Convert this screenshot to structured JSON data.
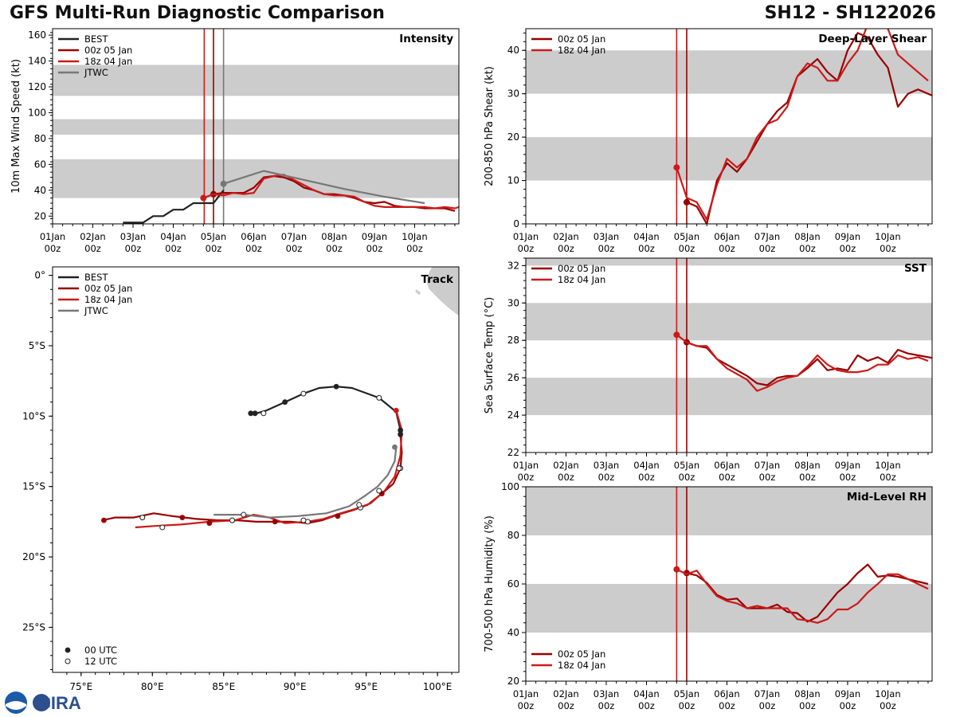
{
  "header": {
    "title": "GFS Multi-Run Diagnostic Comparison",
    "storm_id": "SH12 - SH122026"
  },
  "colors": {
    "best": "#222222",
    "run00z05": "#990000",
    "run18z04": "#cc1a1a",
    "jtwc": "#777777",
    "band": "#cccccc",
    "land": "#cccccc"
  },
  "logo": {
    "name": "NOAA CIRA logo",
    "text": "CIRA"
  },
  "time_axis": {
    "ticks": [
      "01Jan\n00z",
      "02Jan\n00z",
      "03Jan\n00z",
      "04Jan\n00z",
      "05Jan\n00z",
      "06Jan\n00z",
      "07Jan\n00z",
      "08Jan\n00z",
      "09Jan\n00z",
      "10Jan\n00z"
    ],
    "range_days": [
      0,
      10.1
    ]
  },
  "chart_data": [
    {
      "id": "intensity",
      "type": "line",
      "title": "Intensity",
      "ylabel": "10m Max Wind Speed (kt)",
      "ylim": [
        14,
        165
      ],
      "yticks": [
        20,
        40,
        60,
        80,
        100,
        120,
        140,
        160
      ],
      "bands": [
        [
          34,
          64
        ],
        [
          83,
          95
        ],
        [
          113,
          137
        ]
      ],
      "vlines": [
        {
          "t": 3.77,
          "series": "run18z04"
        },
        {
          "t": 4.0,
          "series": "run00z05"
        },
        {
          "t": 4.25,
          "series": "jtwc"
        }
      ],
      "legend": [
        "BEST",
        "00z 05 Jan",
        "18z 04 Jan",
        "JTWC"
      ],
      "series": [
        {
          "name": "BEST",
          "key": "best",
          "t": [
            1.75,
            2.0,
            2.25,
            2.5,
            2.75,
            3.0,
            3.25,
            3.5,
            3.75,
            4.0,
            4.25
          ],
          "v": [
            15,
            15,
            15,
            20,
            20,
            25,
            25,
            30,
            30,
            30,
            40
          ]
        },
        {
          "name": "00z 05 Jan",
          "key": "run00z05",
          "t": [
            4.0,
            4.25,
            4.5,
            4.75,
            5.0,
            5.25,
            5.5,
            5.75,
            6.0,
            6.25,
            6.5,
            6.75,
            7.0,
            7.25,
            7.5,
            7.75,
            8.0,
            8.25,
            8.5,
            8.75,
            9.0,
            9.25,
            9.5,
            9.75,
            10.0
          ],
          "v": [
            37,
            38,
            38,
            38,
            42,
            50,
            51,
            50,
            47,
            42,
            40,
            37,
            37,
            36,
            34,
            31,
            30,
            31,
            28,
            27,
            27,
            26,
            26,
            26,
            24
          ],
          "marker": 0
        },
        {
          "name": "18z 04 Jan",
          "key": "run18z04",
          "t": [
            3.75,
            4.0,
            4.25,
            4.5,
            4.75,
            5.0,
            5.25,
            5.5,
            5.75,
            6.0,
            6.25,
            6.5,
            6.75,
            7.0,
            7.25,
            7.5,
            7.75,
            8.0,
            8.25,
            8.5,
            8.75,
            9.0,
            9.25,
            9.5,
            9.75,
            10.0,
            10.1
          ],
          "v": [
            34,
            37,
            36,
            38,
            37,
            38,
            49,
            51,
            52,
            48,
            44,
            40,
            37,
            36,
            36,
            35,
            31,
            28,
            27,
            27,
            27,
            27,
            27,
            26,
            27,
            26,
            27
          ],
          "marker": 0
        },
        {
          "name": "JTWC",
          "key": "jtwc",
          "t": [
            4.25,
            4.75,
            5.25,
            6.25,
            7.25,
            8.25,
            9.25
          ],
          "v": [
            45,
            50,
            55,
            48,
            41,
            35,
            30
          ],
          "marker": 0
        }
      ]
    },
    {
      "id": "shear",
      "type": "line",
      "title": "Deep-Layer Shear",
      "ylabel": "200-850 hPa Shear (kt)",
      "ylim": [
        0,
        45
      ],
      "yticks": [
        0,
        10,
        20,
        30,
        40
      ],
      "bands": [
        [
          10,
          20
        ],
        [
          30,
          40
        ]
      ],
      "vlines": [
        {
          "t": 3.75,
          "series": "run18z04"
        },
        {
          "t": 4.0,
          "series": "run00z05"
        }
      ],
      "legend": [
        "00z 05 Jan",
        "18z 04 Jan"
      ],
      "series": [
        {
          "name": "00z 05 Jan",
          "key": "run00z05",
          "t": [
            4.0,
            4.25,
            4.5,
            4.75,
            5.0,
            5.25,
            5.5,
            5.75,
            6.0,
            6.25,
            6.5,
            6.75,
            7.0,
            7.25,
            7.5,
            7.75,
            8.0,
            8.25,
            8.5,
            8.75,
            9.0,
            9.25,
            9.5,
            9.75,
            10.0,
            10.25
          ],
          "v": [
            5,
            4,
            0,
            10,
            14,
            12,
            15,
            19,
            23,
            26,
            28,
            34,
            36,
            38,
            35,
            33,
            40,
            44,
            43,
            39,
            36,
            27,
            30,
            31,
            30,
            29
          ],
          "marker": 0
        },
        {
          "name": "18z 04 Jan",
          "key": "run18z04",
          "t": [
            3.75,
            4.0,
            4.25,
            4.5,
            4.75,
            5.0,
            5.25,
            5.5,
            5.75,
            6.0,
            6.25,
            6.5,
            6.75,
            7.0,
            7.25,
            7.5,
            7.75,
            8.0,
            8.25,
            8.5,
            8.75,
            9.0,
            9.25,
            9.5,
            9.75,
            10.0
          ],
          "v": [
            13,
            6,
            5,
            1,
            9,
            15,
            13,
            15,
            20,
            23,
            24,
            27,
            34,
            37,
            36,
            33,
            33,
            37,
            40,
            46,
            48,
            45,
            39,
            37,
            35,
            33
          ],
          "marker": 0
        }
      ]
    },
    {
      "id": "sst",
      "type": "line",
      "title": "SST",
      "ylabel": "Sea Surface Temp (°C)",
      "ylim": [
        22,
        32.4
      ],
      "yticks": [
        22,
        24,
        26,
        28,
        30,
        32
      ],
      "bands": [
        [
          24,
          26
        ],
        [
          28,
          30
        ],
        [
          32,
          34
        ]
      ],
      "vlines": [
        {
          "t": 3.75,
          "series": "run18z04"
        },
        {
          "t": 4.0,
          "series": "run00z05"
        }
      ],
      "legend": [
        "00z 05 Jan",
        "18z 04 Jan"
      ],
      "series": [
        {
          "name": "00z 05 Jan",
          "key": "run00z05",
          "t": [
            4.0,
            4.25,
            4.5,
            4.75,
            5.0,
            5.25,
            5.5,
            5.75,
            6.0,
            6.25,
            6.5,
            6.75,
            7.0,
            7.25,
            7.5,
            7.75,
            8.0,
            8.25,
            8.5,
            8.75,
            9.0,
            9.25,
            9.5,
            9.75,
            10.0,
            10.25
          ],
          "v": [
            27.9,
            27.7,
            27.6,
            27.0,
            26.7,
            26.4,
            26.1,
            25.7,
            25.6,
            26.0,
            26.1,
            26.1,
            26.5,
            27.0,
            26.4,
            26.5,
            26.4,
            27.2,
            26.9,
            27.1,
            26.8,
            27.5,
            27.3,
            27.2,
            27.1,
            27.0
          ],
          "marker": 0
        },
        {
          "name": "18z 04 Jan",
          "key": "run18z04",
          "t": [
            3.75,
            4.0,
            4.25,
            4.5,
            4.75,
            5.0,
            5.25,
            5.5,
            5.75,
            6.0,
            6.25,
            6.5,
            6.75,
            7.0,
            7.25,
            7.5,
            7.75,
            8.0,
            8.25,
            8.5,
            8.75,
            9.0,
            9.25,
            9.5,
            9.75,
            10.0
          ],
          "v": [
            28.3,
            27.9,
            27.7,
            27.7,
            27.0,
            26.5,
            26.2,
            25.9,
            25.3,
            25.5,
            25.8,
            26.0,
            26.1,
            26.6,
            27.2,
            26.7,
            26.4,
            26.3,
            26.3,
            26.4,
            26.7,
            26.7,
            27.2,
            27.0,
            27.1,
            26.9
          ],
          "marker": 0
        }
      ]
    },
    {
      "id": "rh",
      "type": "line",
      "title": "Mid-Level RH",
      "ylabel": "700-500 hPa Humidity (%)",
      "ylim": [
        20,
        100
      ],
      "yticks": [
        20,
        40,
        60,
        80,
        100
      ],
      "bands": [
        [
          40,
          60
        ],
        [
          80,
          100
        ]
      ],
      "vlines": [
        {
          "t": 3.75,
          "series": "run18z04"
        },
        {
          "t": 4.0,
          "series": "run00z05"
        }
      ],
      "legend": [
        "00z 05 Jan",
        "18z 04 Jan"
      ],
      "series": [
        {
          "name": "00z 05 Jan",
          "key": "run00z05",
          "t": [
            4.0,
            4.25,
            4.5,
            4.75,
            5.0,
            5.25,
            5.5,
            5.75,
            6.0,
            6.25,
            6.5,
            6.75,
            7.0,
            7.25,
            7.5,
            7.75,
            8.0,
            8.25,
            8.5,
            8.75,
            9.0,
            9.25,
            9.5,
            9.75,
            10.0
          ],
          "v": [
            64.5,
            63.5,
            60.5,
            55.5,
            53.5,
            54,
            50,
            50,
            50,
            51.5,
            48.5,
            48,
            44.5,
            46.5,
            51.5,
            56.5,
            60,
            64.5,
            68,
            63,
            63.5,
            63,
            62,
            61,
            60
          ],
          "marker": 0
        },
        {
          "name": "18z 04 Jan",
          "key": "run18z04",
          "t": [
            3.75,
            4.0,
            4.25,
            4.5,
            4.75,
            5.0,
            5.25,
            5.5,
            5.75,
            6.0,
            6.25,
            6.5,
            6.75,
            7.0,
            7.25,
            7.5,
            7.75,
            8.0,
            8.25,
            8.5,
            8.75,
            9.0,
            9.25,
            9.5,
            9.75,
            10.0
          ],
          "v": [
            66,
            64,
            65.5,
            60,
            55,
            53,
            52,
            50,
            51,
            50,
            50,
            50,
            45.5,
            45,
            44,
            45.5,
            49.5,
            49.5,
            52,
            56.5,
            60,
            64,
            64,
            62,
            60,
            58
          ],
          "marker": 0
        }
      ]
    },
    {
      "id": "track",
      "type": "line",
      "title": "Track",
      "xlabel": "",
      "ylabel": "",
      "xlim": [
        73,
        101.5
      ],
      "ylim": [
        -28.2,
        0.6
      ],
      "xticks": [
        75,
        80,
        85,
        90,
        95,
        100
      ],
      "xticklabels": [
        "75°E",
        "80°E",
        "85°E",
        "90°E",
        "95°E",
        "100°E"
      ],
      "yticks": [
        0,
        -5,
        -10,
        -15,
        -20,
        -25
      ],
      "yticklabels": [
        "0°",
        "5°S",
        "10°S",
        "15°S",
        "20°S",
        "25°S"
      ],
      "legend": [
        "BEST",
        "00z 05 Jan",
        "18z 04 Jan",
        "JTWC"
      ],
      "marker_legend": [
        "00 UTC",
        "12 UTC"
      ],
      "series": [
        {
          "name": "BEST",
          "key": "best",
          "lon": [
            86.9,
            87.3,
            88.0,
            89.3,
            90.6,
            91.7,
            92.9,
            94.0,
            95.9,
            97.1,
            97.4,
            97.5
          ],
          "lat": [
            -9.8,
            -9.8,
            -9.6,
            -9.0,
            -8.4,
            -8.0,
            -7.9,
            -8.0,
            -8.7,
            -9.7,
            -11.0,
            -11.3
          ],
          "m00": [
            [
              86.9,
              -9.8
            ],
            [
              87.2,
              -9.8
            ],
            [
              89.3,
              -9.0
            ],
            [
              92.9,
              -7.9
            ],
            [
              97.4,
              -11.0
            ],
            [
              97.4,
              -11.3
            ]
          ],
          "m12": [
            [
              87.8,
              -9.8
            ],
            [
              90.6,
              -8.4
            ],
            [
              95.9,
              -8.7
            ]
          ]
        },
        {
          "name": "00z 05 Jan",
          "key": "run00z05",
          "lon": [
            97.4,
            97.5,
            97.4,
            96.9,
            96.1,
            95.1,
            94.0,
            93.0,
            91.9,
            90.9,
            89.7,
            88.6,
            87.3,
            86.0,
            84.6,
            83.1,
            81.4,
            80.1,
            78.7,
            77.4,
            76.5
          ],
          "lat": [
            -11.3,
            -12.6,
            -13.7,
            -14.8,
            -15.5,
            -16.3,
            -16.7,
            -17.0,
            -17.4,
            -17.6,
            -17.5,
            -17.5,
            -17.5,
            -17.4,
            -17.4,
            -17.3,
            -17.1,
            -16.9,
            -17.2,
            -17.2,
            -17.4
          ],
          "m00": [
            [
              96.1,
              -15.5
            ],
            [
              93.0,
              -17.1
            ],
            [
              88.6,
              -17.5
            ],
            [
              84.0,
              -17.6
            ],
            [
              82.1,
              -17.2
            ],
            [
              76.6,
              -17.4
            ]
          ],
          "m12": [
            [
              97.4,
              -13.7
            ],
            [
              94.6,
              -16.5
            ],
            [
              90.9,
              -17.5
            ],
            [
              85.6,
              -17.4
            ],
            [
              79.3,
              -17.2
            ]
          ]
        },
        {
          "name": "18z 04 Jan",
          "key": "run18z04",
          "lon": [
            97.1,
            97.5,
            97.4,
            97.0,
            96.3,
            95.3,
            94.2,
            93.2,
            92.0,
            90.8,
            89.3,
            88.2,
            87.1,
            85.8,
            84.0,
            82.0,
            80.2,
            78.8
          ],
          "lat": [
            -9.6,
            -11.0,
            -12.8,
            -14.3,
            -15.3,
            -16.2,
            -16.6,
            -16.9,
            -17.3,
            -17.5,
            -17.6,
            -17.2,
            -17.0,
            -17.4,
            -17.5,
            -17.7,
            -17.8,
            -17.9
          ],
          "m00": [
            [
              97.1,
              -9.6
            ]
          ],
          "m12": [
            [
              97.3,
              -13.7
            ],
            [
              95.9,
              -15.3
            ],
            [
              94.5,
              -16.3
            ],
            [
              90.6,
              -17.4
            ],
            [
              85.6,
              -17.4
            ],
            [
              80.7,
              -17.9
            ]
          ]
        },
        {
          "name": "JTWC",
          "key": "jtwc",
          "lon": [
            97.1,
            97.0,
            96.5,
            95.8,
            95.0,
            93.8,
            92.2,
            90.2,
            88.2,
            86.4,
            84.3
          ],
          "lat": [
            -12.2,
            -13.2,
            -14.2,
            -15.0,
            -15.6,
            -16.4,
            -16.9,
            -17.1,
            -17.2,
            -17.0,
            -17.0
          ],
          "m00": [
            [
              97.0,
              -12.2
            ]
          ],
          "m12": [
            [
              86.4,
              -17.0
            ]
          ]
        }
      ]
    }
  ]
}
